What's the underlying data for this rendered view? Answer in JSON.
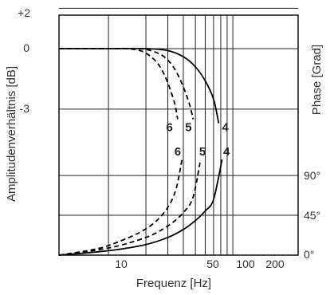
{
  "chart_data": {
    "type": "line",
    "xlabel": "Frequenz [Hz]",
    "ylabel_left": "Amplitudenverhältnis [dB]",
    "ylabel_right": "Phase [Grad]",
    "x_scale": "log",
    "x_ticks": [
      "10",
      "50",
      "100",
      "200"
    ],
    "y_left_ticks": [
      "+2",
      "0",
      "-3"
    ],
    "y_right_ticks": [
      "90°",
      "45°",
      "0°"
    ],
    "xlim": [
      4,
      300
    ],
    "grid": true,
    "series": [
      {
        "name": "4",
        "style": "solid",
        "amplitude": {
          "x": [
            4,
            10,
            20,
            30,
            40,
            50,
            60,
            70,
            77
          ],
          "y": [
            0,
            0,
            0,
            -0.1,
            -0.4,
            -0.9,
            -1.6,
            -2.5,
            -3.7
          ]
        },
        "phase": {
          "x": [
            4,
            10,
            20,
            30,
            40,
            50,
            60,
            70,
            82
          ],
          "y": [
            0,
            5,
            12,
            20,
            29,
            39,
            50,
            63,
            108
          ]
        }
      },
      {
        "name": "5",
        "style": "dashed",
        "amplitude": {
          "x": [
            4,
            10,
            17,
            22,
            28,
            34,
            40,
            45,
            48
          ],
          "y": [
            0,
            0,
            0,
            -0.1,
            -0.4,
            -1.0,
            -1.9,
            -2.8,
            -3.5
          ]
        },
        "phase": {
          "x": [
            4,
            10,
            20,
            30,
            40,
            48,
            55
          ],
          "y": [
            0,
            8,
            20,
            33,
            48,
            66,
            108
          ]
        }
      },
      {
        "name": "6",
        "style": "dashed",
        "amplitude": {
          "x": [
            4,
            10,
            14,
            18,
            22,
            26,
            30,
            34,
            36
          ],
          "y": [
            0,
            0,
            0,
            -0.1,
            -0.4,
            -0.9,
            -1.7,
            -2.7,
            -3.5
          ]
        },
        "phase": {
          "x": [
            4,
            8,
            12,
            18,
            24,
            30,
            35,
            39
          ],
          "y": [
            0,
            7,
            15,
            26,
            38,
            54,
            75,
            108
          ]
        }
      }
    ],
    "curve_labels": [
      {
        "text": "6",
        "x": 31,
        "y": -3.9
      },
      {
        "text": "5",
        "x": 44,
        "y": -3.9
      },
      {
        "text": "4",
        "x": 87,
        "y": -3.9
      },
      {
        "text": "6",
        "x": 36,
        "y": 117
      },
      {
        "text": "5",
        "x": 57,
        "y": 117
      },
      {
        "text": "4",
        "x": 89,
        "y": 117
      }
    ]
  }
}
